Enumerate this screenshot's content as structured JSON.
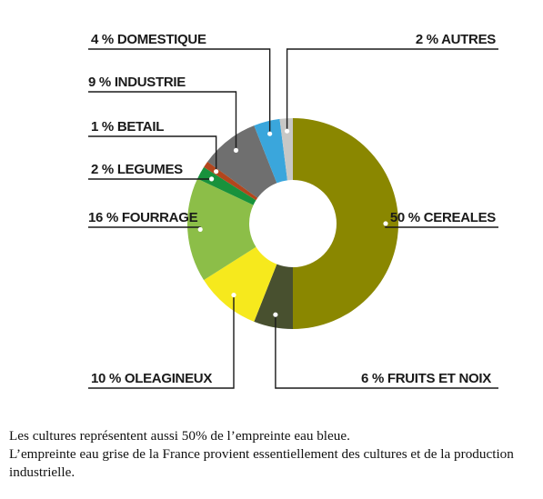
{
  "chart_data": {
    "type": "pie",
    "style": "donut",
    "slices": [
      {
        "label": "50 % CEREALES",
        "category": "CEREALES",
        "value": 50,
        "color": "#8a8700"
      },
      {
        "label": "6 % FRUITS ET NOIX",
        "category": "FRUITS ET NOIX",
        "value": 6,
        "color": "#48502f"
      },
      {
        "label": "10 % OLEAGINEUX",
        "category": "OLEAGINEUX",
        "value": 10,
        "color": "#f6e91d"
      },
      {
        "label": "16 % FOURRAGE",
        "category": "FOURRAGE",
        "value": 16,
        "color": "#8cbe48"
      },
      {
        "label": "2 % LEGUMES",
        "category": "LEGUMES",
        "value": 2,
        "color": "#18923c"
      },
      {
        "label": "1 % BETAIL",
        "category": "BETAIL",
        "value": 1,
        "color": "#b3461d"
      },
      {
        "label": "9 % INDUSTRIE",
        "category": "INDUSTRIE",
        "value": 9,
        "color": "#6f6f6f"
      },
      {
        "label": "4 % DOMESTIQUE",
        "category": "DOMESTIQUE",
        "value": 4,
        "color": "#3aa6dc"
      },
      {
        "label": "2 % AUTRES",
        "category": "AUTRES",
        "value": 2,
        "color": "#c8c8c6"
      }
    ]
  },
  "caption": {
    "line1": "Les cultures représentent aussi 50% de l’empreinte eau bleue.",
    "line2": "L’empreinte eau grise de la France provient essentiellement des cultures et de la production industrielle."
  }
}
